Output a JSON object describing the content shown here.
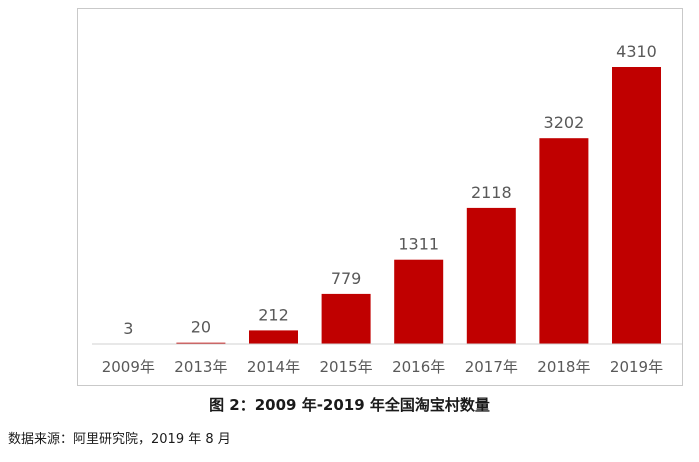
{
  "chart_data": {
    "type": "bar",
    "categories": [
      "2009年",
      "2013年",
      "2014年",
      "2015年",
      "2016年",
      "2017年",
      "2018年",
      "2019年"
    ],
    "values": [
      3,
      20,
      212,
      779,
      1311,
      2118,
      3202,
      4310
    ],
    "data_labels": [
      "3",
      "20",
      "212",
      "779",
      "1311",
      "2118",
      "3202",
      "4310"
    ],
    "ylim": [
      0,
      4310
    ],
    "bar_color": "#c00000",
    "grid": false,
    "legend": "none",
    "caption": "图 2：2009 年-2019 年全国淘宝村数量",
    "source": "数据来源：阿里研究院，2019 年 8 月"
  }
}
